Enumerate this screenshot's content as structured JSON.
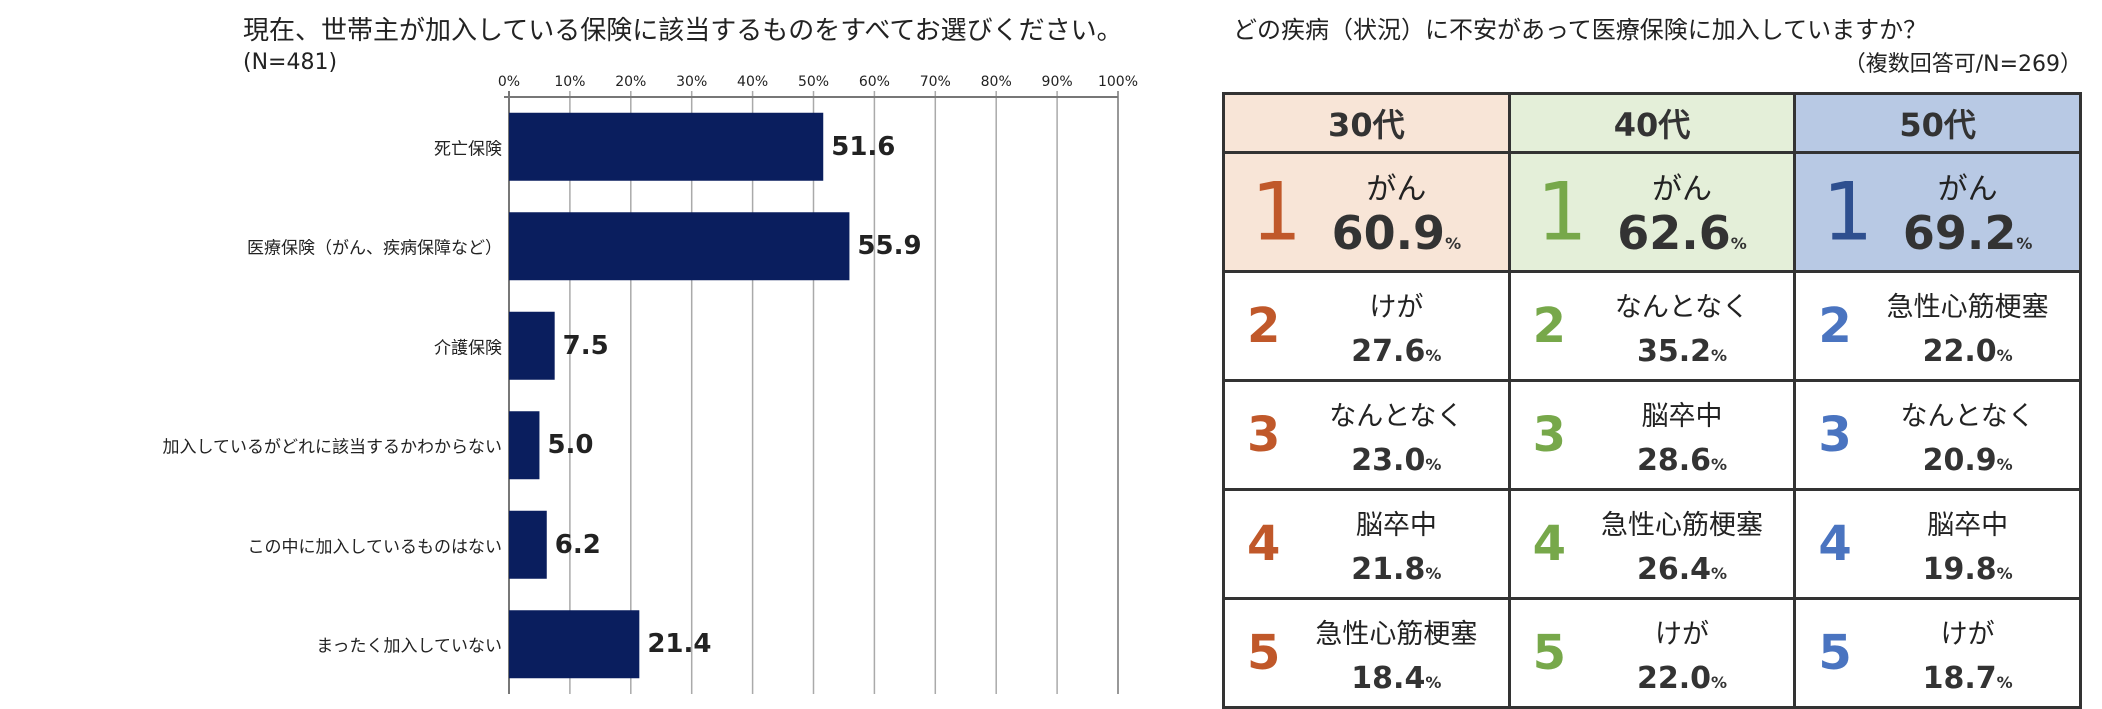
{
  "chart_data": [
    {
      "type": "bar",
      "orientation": "horizontal",
      "title": "現在、世帯主が加入している保険に該当するものをすべてお選びください。",
      "subtitle": "(N=481)",
      "categories": [
        "死亡保険",
        "医療保険（がん、疾病保障など）",
        "介護保険",
        "加入しているがどれに該当するかわからない",
        "この中に加入しているものはない",
        "まったく加入していない"
      ],
      "values": [
        51.6,
        55.9,
        7.5,
        5.0,
        6.2,
        21.4
      ],
      "value_labels": [
        "51.6",
        "55.9",
        "7.5",
        "5.0",
        "6.2",
        "21.4"
      ],
      "xlim": [
        0,
        100
      ],
      "ticks": [
        "0%",
        "10%",
        "20%",
        "30%",
        "40%",
        "50%",
        "60%",
        "70%",
        "80%",
        "90%",
        "100%"
      ],
      "grid": true,
      "bar_color": "#0a1e5e"
    },
    {
      "type": "table",
      "title": "どの疾病（状況）に不安があって医療保険に加入していますか？",
      "subtitle": "（複数回答可/N=269）",
      "columns": [
        {
          "label": "30代",
          "color": "#f8e5d7",
          "rank_color": "#c0582a",
          "rows": [
            {
              "rank": "1",
              "name": "がん",
              "pct": "60.9"
            },
            {
              "rank": "2",
              "name": "けが",
              "pct": "27.6"
            },
            {
              "rank": "3",
              "name": "なんとなく",
              "pct": "23.0"
            },
            {
              "rank": "4",
              "name": "脳卒中",
              "pct": "21.8"
            },
            {
              "rank": "5",
              "name": "急性心筋梗塞",
              "pct": "18.4"
            }
          ]
        },
        {
          "label": "40代",
          "color": "#e4efd9",
          "rank_color": "#77a84a",
          "rows": [
            {
              "rank": "1",
              "name": "がん",
              "pct": "62.6"
            },
            {
              "rank": "2",
              "name": "なんとなく",
              "pct": "35.2"
            },
            {
              "rank": "3",
              "name": "脳卒中",
              "pct": "28.6"
            },
            {
              "rank": "4",
              "name": "急性心筋梗塞",
              "pct": "26.4"
            },
            {
              "rank": "5",
              "name": "けが",
              "pct": "22.0"
            }
          ]
        },
        {
          "label": "50代",
          "color": "#b8c9e4",
          "rank_color": "#2e4f8f",
          "rows": [
            {
              "rank": "1",
              "name": "がん",
              "pct": "69.2"
            },
            {
              "rank": "2",
              "name": "急性心筋梗塞",
              "pct": "22.0"
            },
            {
              "rank": "3",
              "name": "なんとなく",
              "pct": "20.9"
            },
            {
              "rank": "4",
              "name": "脳卒中",
              "pct": "19.8"
            },
            {
              "rank": "5",
              "name": "けが",
              "pct": "18.7"
            }
          ]
        }
      ],
      "unit": "%"
    }
  ]
}
